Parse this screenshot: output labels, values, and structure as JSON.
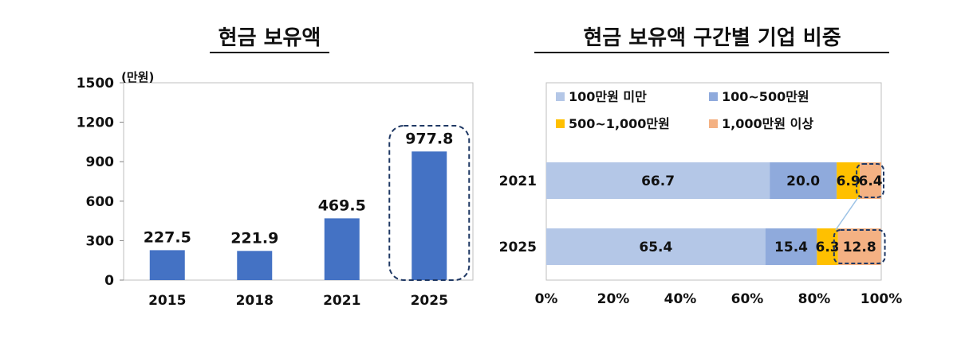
{
  "charts": [
    {
      "title": "현금 보유액",
      "unit": "(만원)",
      "chart_data": {
        "type": "bar",
        "categories": [
          "2015",
          "2018",
          "2021",
          "2025"
        ],
        "values": [
          227.5,
          221.9,
          469.5,
          977.8
        ],
        "value_labels": [
          "227.5",
          "221.9",
          "469.5",
          "977.8"
        ],
        "ylim": [
          0,
          1500
        ],
        "yticks": [
          "0",
          "300",
          "600",
          "900",
          "1200",
          "1500"
        ],
        "color": "#4472C4",
        "highlight": "2025",
        "grid": false
      }
    },
    {
      "title": "현금 보유액 구간별 기업 비중",
      "chart_data": {
        "type": "bar",
        "orientation": "horizontal",
        "stacked": true,
        "categories": [
          "2021",
          "2025"
        ],
        "series": [
          {
            "name": "100만원 미만",
            "values": [
              66.7,
              65.4
            ],
            "labels": [
              "66.7",
              "65.4"
            ],
            "color": "#B4C7E7"
          },
          {
            "name": "100~500만원",
            "values": [
              20.0,
              15.4
            ],
            "labels": [
              "20.0",
              "15.4"
            ],
            "color": "#8FAADC"
          },
          {
            "name": "500~1,000만원",
            "values": [
              6.9,
              6.3
            ],
            "labels": [
              "6.9",
              "6.3"
            ],
            "color": "#FFC000"
          },
          {
            "name": "1,000만원 이상",
            "values": [
              6.4,
              12.8
            ],
            "labels": [
              "6.4",
              "12.8"
            ],
            "color": "#F4B183"
          }
        ],
        "xlim": [
          0,
          100
        ],
        "xticks": [
          "0%",
          "20%",
          "40%",
          "60%",
          "80%",
          "100%"
        ],
        "highlight_series": "1,000만원 이상",
        "legend": "top",
        "grid": false
      }
    }
  ]
}
